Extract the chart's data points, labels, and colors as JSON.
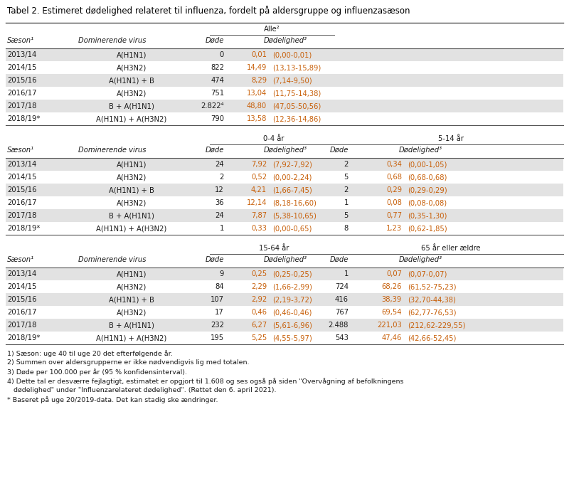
{
  "title": "Tabel 2. Estimeret dødelighed relateret til influenza, fordelt på aldersgruppe og influenzasæson",
  "footnotes": [
    "1) Sæson: uge 40 til uge 20 det efterfølgende år.",
    "2) Summen over aldersgrupperne er ikke nødvendigvis lig med totalen.",
    "3) Døde per 100.000 per år (95 % konfidensinterval).",
    "4) Dette tal er desværre fejlagtigt, estimatet er opgjort til 1.608 og ses også på siden \"Overvågning af befolkningens",
    "   dødelighed\" under \"Influenzarelateret dødelighed\". (Rettet den 6. april 2021).",
    "* Baseret på uge 20/2019-data. Det kan stadig ske ændringer."
  ],
  "section1": {
    "group_label": "Alle²",
    "rows": [
      [
        "2013/14",
        "A(H1N1)",
        "0",
        "0,01",
        "(0,00-0,01)"
      ],
      [
        "2014/15",
        "A(H3N2)",
        "822",
        "14,49",
        "(13,13-15,89)"
      ],
      [
        "2015/16",
        "A(H1N1) + B",
        "474",
        "8,29",
        "(7,14-9,50)"
      ],
      [
        "2016/17",
        "A(H3N2)",
        "751",
        "13,04",
        "(11,75-14,38)"
      ],
      [
        "2017/18",
        "B + A(H1N1)",
        "2.822⁴",
        "48,80",
        "(47,05-50,56)"
      ],
      [
        "2018/19*",
        "A(H1N1) + A(H3N2)",
        "790",
        "13,58",
        "(12,36-14,86)"
      ]
    ],
    "row_shading": [
      true,
      false,
      true,
      false,
      true,
      false
    ]
  },
  "section2": {
    "group_label1": "0-4 år",
    "group_label2": "5-14 år",
    "rows": [
      [
        "2013/14",
        "A(H1N1)",
        "24",
        "7,92",
        "(7,92-7,92)",
        "2",
        "0,34",
        "(0,00-1,05)"
      ],
      [
        "2014/15",
        "A(H3N2)",
        "2",
        "0,52",
        "(0,00-2,24)",
        "5",
        "0,68",
        "(0,68-0,68)"
      ],
      [
        "2015/16",
        "A(H1N1) + B",
        "12",
        "4,21",
        "(1,66-7,45)",
        "2",
        "0,29",
        "(0,29-0,29)"
      ],
      [
        "2016/17",
        "A(H3N2)",
        "36",
        "12,14",
        "(8,18-16,60)",
        "1",
        "0,08",
        "(0,08-0,08)"
      ],
      [
        "2017/18",
        "B + A(H1N1)",
        "24",
        "7,87",
        "(5,38-10,65)",
        "5",
        "0,77",
        "(0,35-1,30)"
      ],
      [
        "2018/19*",
        "A(H1N1) + A(H3N2)",
        "1",
        "0,33",
        "(0,00-0,65)",
        "8",
        "1,23",
        "(0,62-1,85)"
      ]
    ],
    "row_shading": [
      true,
      false,
      true,
      false,
      true,
      false
    ]
  },
  "section3": {
    "group_label1": "15-64 år",
    "group_label2": "65 år eller ældre",
    "rows": [
      [
        "2013/14",
        "A(H1N1)",
        "9",
        "0,25",
        "(0,25-0,25)",
        "1",
        "0,07",
        "(0,07-0,07)"
      ],
      [
        "2014/15",
        "A(H3N2)",
        "84",
        "2,29",
        "(1,66-2,99)",
        "724",
        "68,26",
        "(61,52-75,23)"
      ],
      [
        "2015/16",
        "A(H1N1) + B",
        "107",
        "2,92",
        "(2,19-3,72)",
        "416",
        "38,39",
        "(32,70-44,38)"
      ],
      [
        "2016/17",
        "A(H3N2)",
        "17",
        "0,46",
        "(0,46-0,46)",
        "767",
        "69,54",
        "(62,77-76,53)"
      ],
      [
        "2017/18",
        "B + A(H1N1)",
        "232",
        "6,27",
        "(5,61-6,96)",
        "2.488",
        "221,03",
        "(212,62-229,55)"
      ],
      [
        "2018/19*",
        "A(H1N1) + A(H3N2)",
        "195",
        "5,25",
        "(4,55-5,97)",
        "543",
        "47,46",
        "(42,66-52,45)"
      ]
    ],
    "row_shading": [
      true,
      false,
      true,
      false,
      true,
      false
    ]
  },
  "shading_color": "#e2e2e2",
  "bg_color": "#ffffff",
  "line_color": "#666666",
  "text_color": "#1a1a1a",
  "title_color": "#000000",
  "orange_color": "#c8600a",
  "font_size": 7.2,
  "header_font_size": 7.2,
  "title_font_size": 8.5
}
